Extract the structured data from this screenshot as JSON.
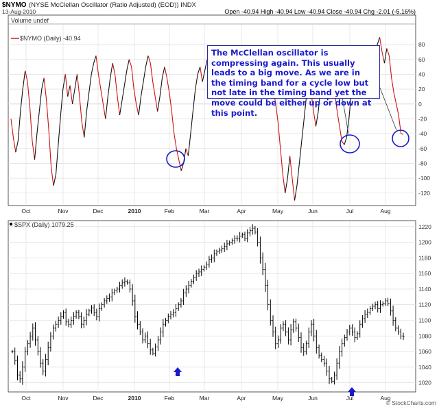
{
  "header": {
    "ticker": "$NYMO",
    "description": "(NYSE McClellan Oscillator (Ratio Adjusted) (EOD)) INDX",
    "date": "13-Aug-2010",
    "quote": "Open -40.94  High -40.94  Low -40.94  Close -40.94  Chg -2.01 (-5.16%)",
    "watermark": "© StockCharts.com"
  },
  "top_panel": {
    "legend_volume": "Volume undef",
    "legend_series": "$NYMO (Daily) -40.94"
  },
  "bottom_panel": {
    "legend_series": "$SPX (Daily) 1079.25"
  },
  "annotation": {
    "text": "The McClellan oscillator is compressing again. This usually leads to a big move. As we are in the timing band for a cycle low but not late in the timing band yet the move could be either up or down at this point."
  },
  "colors": {
    "nymo_line": "#cc1111",
    "nymo_up_line": "#111111",
    "grid": "#d8d8d8",
    "circle": "#1a1acc",
    "arrow": "#1a1acc",
    "bars": "#000000"
  },
  "chart_data": [
    {
      "type": "line",
      "title": "$NYMO (Daily) -40.94",
      "x_ticks": [
        "Oct",
        "Nov",
        "Dec",
        "2010",
        "Feb",
        "Mar",
        "Apr",
        "May",
        "Jun",
        "Jul",
        "Aug"
      ],
      "y_ticks": [
        80,
        60,
        40,
        20,
        0,
        -20,
        -40,
        -60,
        -80,
        -100,
        -120
      ],
      "ylim": [
        -135,
        105
      ],
      "series": [
        {
          "values": [
            -20,
            -45,
            -65,
            -50,
            -10,
            20,
            45,
            30,
            -5,
            -50,
            -75,
            -40,
            -10,
            20,
            35,
            5,
            -35,
            -85,
            -110,
            -95,
            -55,
            -15,
            20,
            40,
            10,
            25,
            0,
            20,
            40,
            10,
            -25,
            -45,
            -10,
            15,
            40,
            55,
            65,
            40,
            20,
            0,
            -20,
            10,
            35,
            55,
            40,
            10,
            -15,
            5,
            25,
            45,
            60,
            50,
            20,
            0,
            -15,
            10,
            30,
            50,
            65,
            55,
            30,
            10,
            -10,
            10,
            35,
            50,
            35,
            15,
            -10,
            -40,
            -60,
            -75,
            -90,
            -80,
            -60,
            -70,
            -40,
            -10,
            20,
            40,
            50,
            30,
            45,
            60,
            45,
            30,
            50,
            65,
            55,
            40,
            55,
            60,
            40,
            30,
            50,
            65,
            55,
            45,
            35,
            55,
            60,
            40,
            30,
            45,
            60,
            50,
            45,
            40,
            55,
            60,
            45,
            20,
            0,
            -25,
            -60,
            -95,
            -120,
            -100,
            -70,
            -100,
            -130,
            -110,
            -80,
            -50,
            -20,
            10,
            30,
            15,
            -10,
            -30,
            -10,
            20,
            35,
            20,
            5,
            20,
            35,
            15,
            -10,
            -30,
            -50,
            -55,
            -45,
            -20,
            15,
            40,
            60,
            40,
            55,
            75,
            55,
            30,
            10,
            30,
            60,
            80,
            90,
            70,
            55,
            75,
            65,
            35,
            15,
            0,
            -15,
            -40,
            -41
          ]
        }
      ]
    },
    {
      "type": "bar",
      "title": "$SPX (Daily) 1079.25",
      "x_ticks": [
        "Oct",
        "Nov",
        "Dec",
        "2010",
        "Feb",
        "Mar",
        "Apr",
        "May",
        "Jun",
        "Jul",
        "Aug"
      ],
      "y_ticks": [
        1220,
        1200,
        1180,
        1160,
        1140,
        1120,
        1100,
        1080,
        1060,
        1040,
        1020
      ],
      "ylim": [
        1010,
        1226
      ],
      "series": [
        {
          "name": "$SPX",
          "values": [
            1060,
            1048,
            1030,
            1025,
            1040,
            1060,
            1070,
            1080,
            1090,
            1075,
            1060,
            1045,
            1035,
            1050,
            1065,
            1080,
            1090,
            1095,
            1100,
            1105,
            1110,
            1098,
            1095,
            1100,
            1105,
            1110,
            1105,
            1095,
            1100,
            1108,
            1112,
            1116,
            1110,
            1105,
            1115,
            1120,
            1125,
            1128,
            1130,
            1135,
            1138,
            1140,
            1145,
            1148,
            1150,
            1148,
            1140,
            1125,
            1105,
            1095,
            1085,
            1075,
            1080,
            1070,
            1062,
            1058,
            1066,
            1075,
            1085,
            1095,
            1100,
            1105,
            1108,
            1110,
            1115,
            1120,
            1125,
            1135,
            1140,
            1145,
            1150,
            1155,
            1160,
            1162,
            1165,
            1168,
            1172,
            1178,
            1180,
            1185,
            1188,
            1190,
            1192,
            1195,
            1198,
            1200,
            1202,
            1205,
            1205,
            1208,
            1210,
            1205,
            1212,
            1215,
            1218,
            1213,
            1200,
            1180,
            1165,
            1145,
            1120,
            1100,
            1085,
            1070,
            1075,
            1090,
            1095,
            1085,
            1075,
            1088,
            1098,
            1090,
            1078,
            1065,
            1060,
            1070,
            1085,
            1095,
            1080,
            1065,
            1055,
            1050,
            1045,
            1035,
            1025,
            1022,
            1030,
            1045,
            1060,
            1070,
            1078,
            1085,
            1090,
            1085,
            1078,
            1083,
            1095,
            1102,
            1108,
            1110,
            1115,
            1118,
            1120,
            1115,
            1120,
            1122,
            1125,
            1122,
            1112,
            1100,
            1090,
            1085,
            1080,
            1079
          ]
        }
      ]
    }
  ]
}
